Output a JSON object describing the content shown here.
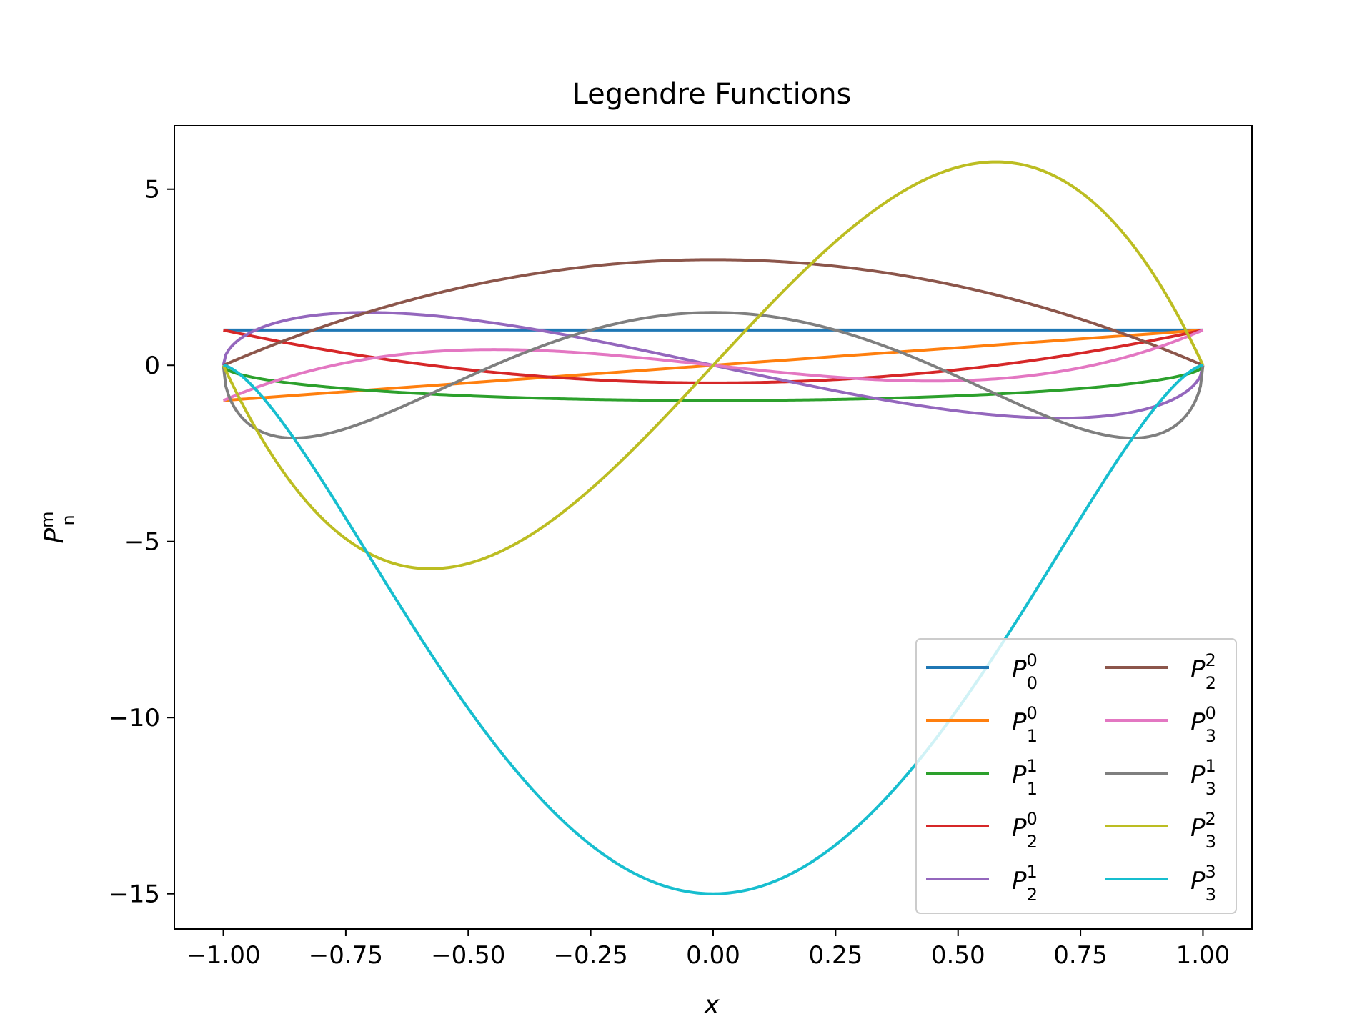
{
  "chart_data": {
    "type": "line",
    "title": "Legendre Functions",
    "xlabel": "x",
    "ylabel": {
      "base": "P",
      "sup": "m",
      "sub": "n"
    },
    "xlim": [
      -1.1,
      1.1
    ],
    "ylim": [
      -16.0,
      6.8
    ],
    "xticks": [
      -1.0,
      -0.75,
      -0.5,
      -0.25,
      0.0,
      0.25,
      0.5,
      0.75,
      1.0
    ],
    "xtick_labels": [
      "−1.00",
      "−0.75",
      "−0.50",
      "−0.25",
      "0.00",
      "0.25",
      "0.50",
      "0.75",
      "1.00"
    ],
    "yticks": [
      5,
      0,
      -5,
      -10,
      -15
    ],
    "ytick_labels": [
      "5",
      "0",
      "−5",
      "−10",
      "−15"
    ],
    "legend_position": "lower-right",
    "legend_columns": 2,
    "grid": false,
    "x_range_of_series": [
      -1.0,
      1.0
    ],
    "series": [
      {
        "name": "P00",
        "label_base": "P",
        "n": "0",
        "m": "0",
        "color": "#1f77b4"
      },
      {
        "name": "P10",
        "label_base": "P",
        "n": "1",
        "m": "0",
        "color": "#ff7f0e"
      },
      {
        "name": "P11",
        "label_base": "P",
        "n": "1",
        "m": "1",
        "color": "#2ca02c"
      },
      {
        "name": "P20",
        "label_base": "P",
        "n": "2",
        "m": "0",
        "color": "#d62728"
      },
      {
        "name": "P21",
        "label_base": "P",
        "n": "2",
        "m": "1",
        "color": "#9467bd"
      },
      {
        "name": "P22",
        "label_base": "P",
        "n": "2",
        "m": "2",
        "color": "#8c564b"
      },
      {
        "name": "P30",
        "label_base": "P",
        "n": "3",
        "m": "0",
        "color": "#e377c2"
      },
      {
        "name": "P31",
        "label_base": "P",
        "n": "3",
        "m": "1",
        "color": "#7f7f7f"
      },
      {
        "name": "P32",
        "label_base": "P",
        "n": "3",
        "m": "2",
        "color": "#bcbd22"
      },
      {
        "name": "P33",
        "label_base": "P",
        "n": "3",
        "m": "3",
        "color": "#17becf"
      }
    ]
  }
}
